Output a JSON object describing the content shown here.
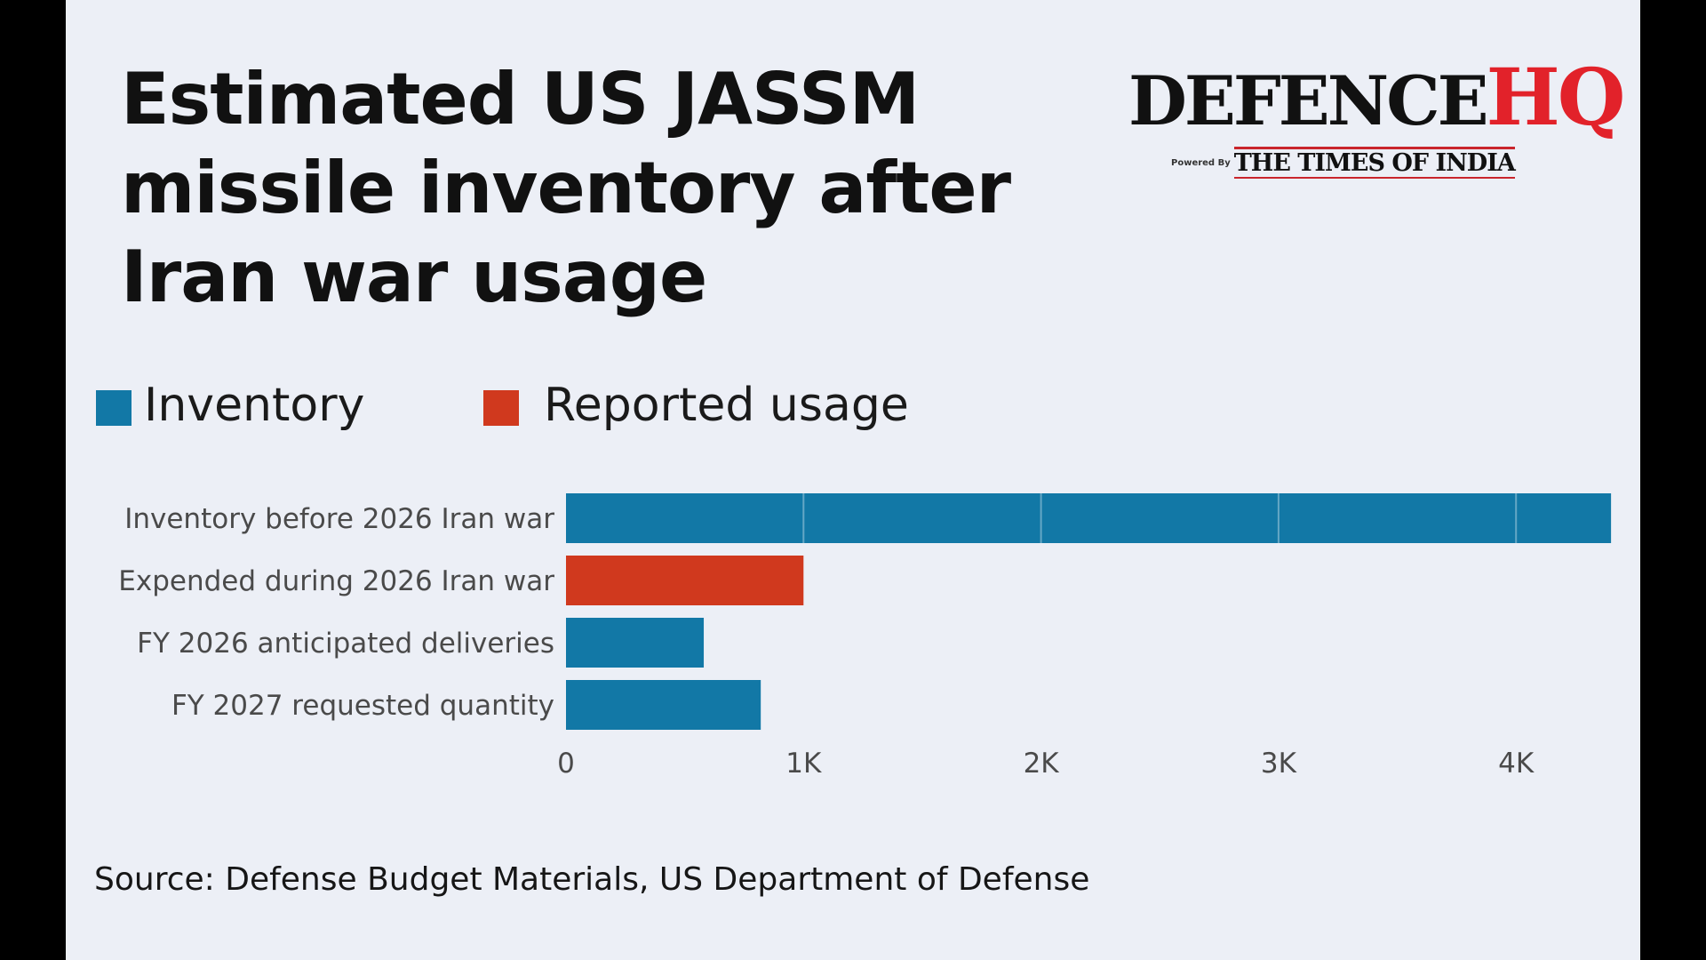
{
  "logo": {
    "main": "DEFENCE",
    "accent": "HQ",
    "powered_by": "Powered By",
    "partner": "THE TIMES OF INDIA"
  },
  "source": "Source: Defense Budget Materials, US Department of Defense",
  "colors": {
    "inventory": "#1278a6",
    "usage": "#d0391e",
    "background": "#eceff6",
    "text": "#1a1a1a",
    "axis_text": "#4a4a4a",
    "logo_red": "#e2222a"
  },
  "chart_data": {
    "type": "bar",
    "orientation": "horizontal",
    "title": "Estimated US JASSM missile inventory after Iran war usage",
    "xlabel": "",
    "ylabel": "",
    "xlim": [
      0,
      4400
    ],
    "x_ticks": [
      0,
      1000,
      2000,
      3000,
      4000
    ],
    "x_tick_labels": [
      "0",
      "1K",
      "2K",
      "3K",
      "4K"
    ],
    "grid": false,
    "legend_position": "top-left",
    "legend": [
      {
        "label": "Inventory",
        "color": "#1278a6"
      },
      {
        "label": "Reported usage",
        "color": "#d0391e"
      }
    ],
    "categories": [
      "Inventory before 2026 Iran war",
      "Expended during 2026 Iran war",
      "FY 2026 anticipated deliveries",
      "FY 2027 requested quantity"
    ],
    "values": [
      4400,
      1000,
      580,
      820
    ],
    "series_of_bar": [
      "Inventory",
      "Reported usage",
      "Inventory",
      "Inventory"
    ]
  }
}
